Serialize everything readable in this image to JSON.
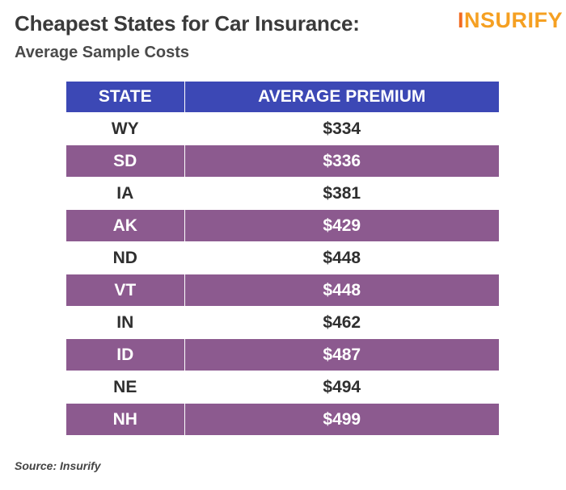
{
  "header": {
    "title": "Cheapest States for Car Insurance:",
    "subtitle": "Average Sample Costs"
  },
  "logo": {
    "first_letter": "I",
    "rest": "NSURIFY"
  },
  "colors": {
    "header_bg": "#3c48b5",
    "alt_row_bg": "#8c5a8f",
    "logo": "#f5a022"
  },
  "chart_data": {
    "type": "table",
    "columns": [
      "STATE",
      "AVERAGE PREMIUM"
    ],
    "rows": [
      [
        "WY",
        "$334"
      ],
      [
        "SD",
        "$336"
      ],
      [
        "IA",
        "$381"
      ],
      [
        "AK",
        "$429"
      ],
      [
        "ND",
        "$448"
      ],
      [
        "VT",
        "$448"
      ],
      [
        "IN",
        "$462"
      ],
      [
        "ID",
        "$487"
      ],
      [
        "NE",
        "$494"
      ],
      [
        "NH",
        "$499"
      ]
    ]
  },
  "footer": {
    "source": "Source: Insurify"
  }
}
